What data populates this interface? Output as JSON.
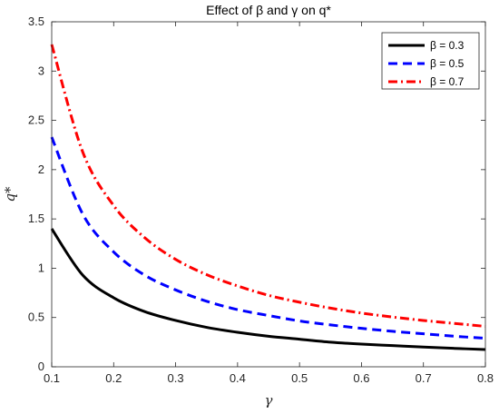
{
  "chart_data": {
    "type": "line",
    "title": "Effect of β and γ on q*",
    "xlabel": "γ",
    "ylabel": "q*",
    "xlim": [
      0.1,
      0.8
    ],
    "ylim": [
      0,
      3.5
    ],
    "xticks": [
      "0.1",
      "0.2",
      "0.3",
      "0.4",
      "0.5",
      "0.6",
      "0.7",
      "0.8"
    ],
    "yticks": [
      "0",
      "0.5",
      "1",
      "1.5",
      "2",
      "2.5",
      "3",
      "3.5"
    ],
    "grid": false,
    "legend_position": "top-right",
    "x": [
      0.1,
      0.15,
      0.2,
      0.25,
      0.3,
      0.35,
      0.4,
      0.45,
      0.5,
      0.55,
      0.6,
      0.65,
      0.7,
      0.75,
      0.8
    ],
    "series": [
      {
        "name": "β = 0.3",
        "color": "#000000",
        "style": "solid",
        "values": [
          1.4,
          0.93,
          0.7,
          0.56,
          0.47,
          0.4,
          0.35,
          0.31,
          0.28,
          0.25,
          0.23,
          0.215,
          0.2,
          0.187,
          0.175
        ]
      },
      {
        "name": "β = 0.5",
        "color": "#0000ff",
        "style": "dashed",
        "values": [
          2.33,
          1.55,
          1.165,
          0.93,
          0.78,
          0.665,
          0.58,
          0.52,
          0.465,
          0.425,
          0.39,
          0.36,
          0.335,
          0.31,
          0.29
        ]
      },
      {
        "name": "β = 0.7",
        "color": "#ff0000",
        "style": "dashdot",
        "values": [
          3.27,
          2.18,
          1.635,
          1.31,
          1.09,
          0.935,
          0.82,
          0.725,
          0.655,
          0.595,
          0.545,
          0.505,
          0.47,
          0.44,
          0.41
        ]
      }
    ]
  }
}
